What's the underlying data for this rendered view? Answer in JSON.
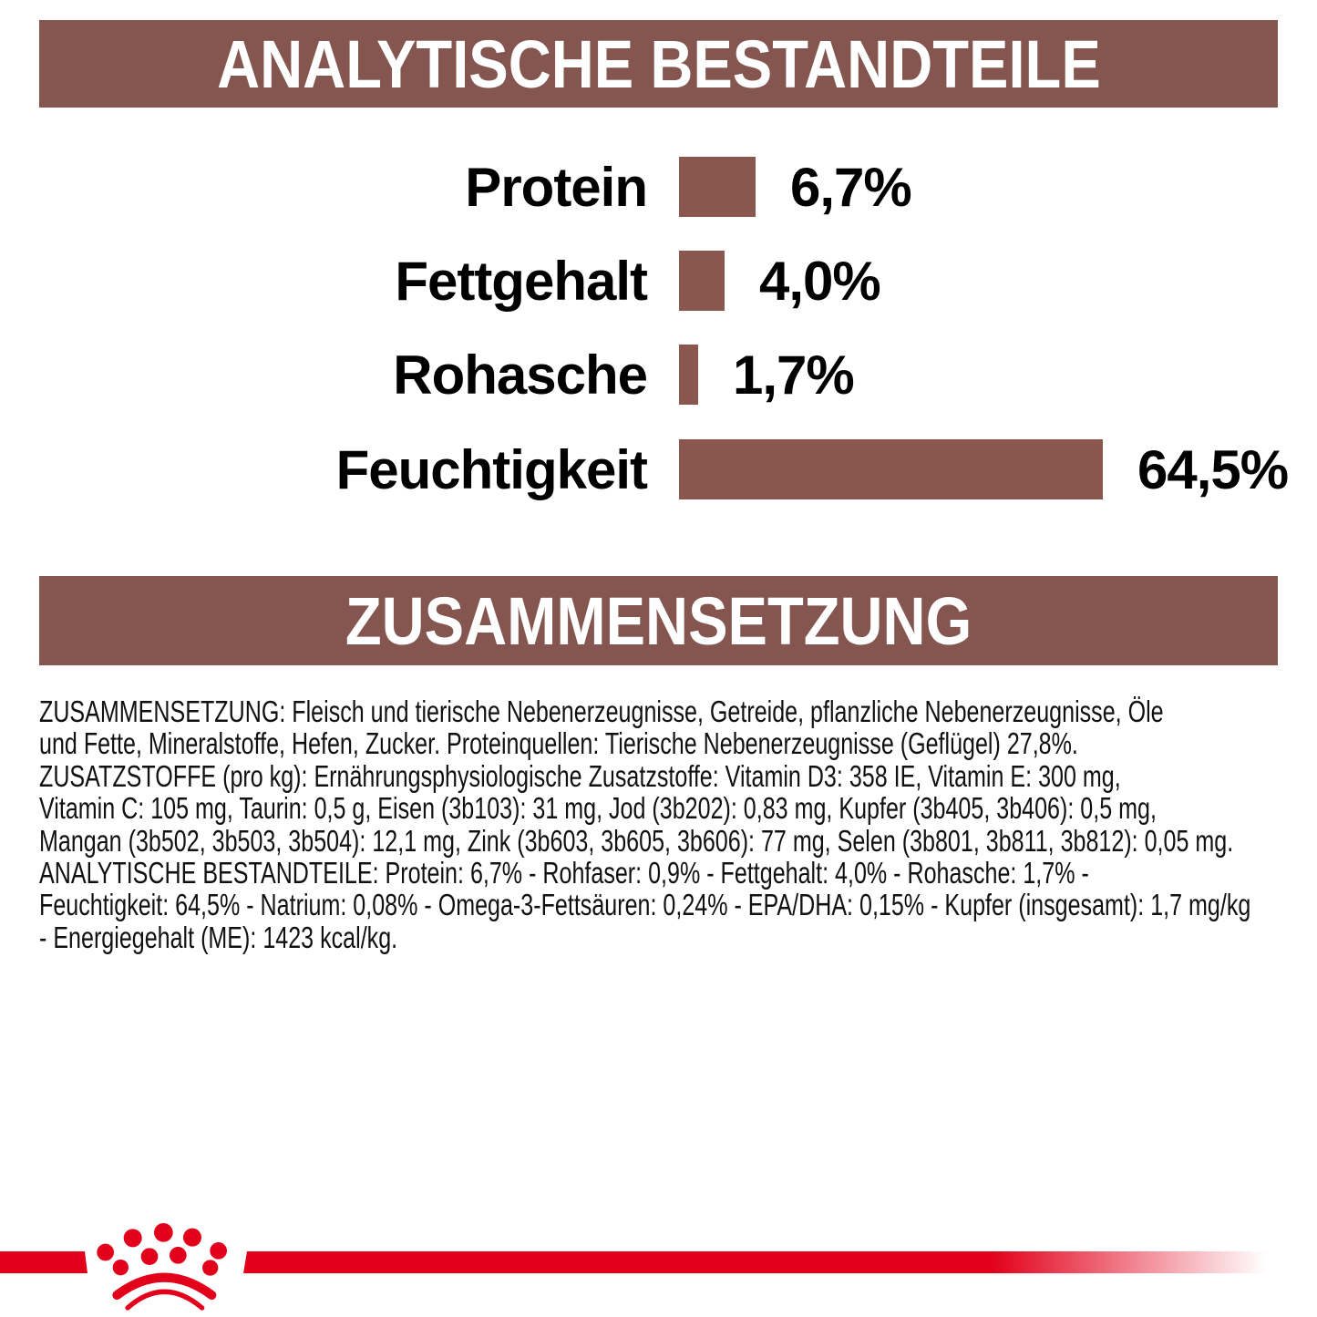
{
  "colors": {
    "page_bg": "#ffffff",
    "header_bg": "#84564f",
    "header_text": "#ffffff",
    "body_text": "#111111",
    "brand_red": "#e2001a"
  },
  "analytical_header": {
    "title": "ANALYTISCHE BESTANDTEILE"
  },
  "composition_header": {
    "title": "ZUSAMMENSETZUNG"
  },
  "chart_data": {
    "type": "bar",
    "orientation": "horizontal",
    "title": "ANALYTISCHE BESTANDTEILE",
    "categories": [
      "Protein",
      "Fettgehalt",
      "Rohasche",
      "Feuchtigkeit"
    ],
    "values": [
      6.7,
      4.0,
      1.7,
      64.5
    ],
    "value_labels": [
      "6,7%",
      "4,0%",
      "1,7%",
      "64,5%"
    ],
    "unit": "%",
    "bar_color": "#8a574e",
    "grid": false,
    "legend": false,
    "value_label_position": "right-of-bar"
  },
  "composition": {
    "lines": [
      "ZUSAMMENSETZUNG: Fleisch und tierische Nebenerzeugnisse, Getreide, pflanzliche Nebenerzeugnisse, Öle",
      "und Fette, Mineralstoffe, Hefen, Zucker. Proteinquellen: Tierische Nebenerzeugnisse (Geflügel) 27,8%.",
      "ZUSATZSTOFFE (pro kg): Ernährungsphysiologische Zusatzstoffe: Vitamin D3: 358 IE, Vitamin E: 300 mg,",
      "Vitamin C: 105 mg, Taurin: 0,5 g, Eisen (3b103): 31 mg, Jod (3b202): 0,83 mg, Kupfer (3b405, 3b406): 0,5 mg,",
      "Mangan (3b502, 3b503, 3b504): 12,1 mg, Zink (3b603, 3b605, 3b606): 77 mg, Selen (3b801, 3b811, 3b812): 0,05 mg.",
      "ANALYTISCHE BESTANDTEILE: Protein: 6,7% - Rohfaser: 0,9% - Fettgehalt: 4,0% - Rohasche: 1,7% -",
      "Feuchtigkeit: 64,5% - Natrium: 0,08% - Omega-3-Fettsäuren: 0,24% - EPA/DHA: 0,15% - Kupfer (insgesamt): 1,7 mg/kg",
      "- Energiegehalt (ME): 1423 kcal/kg."
    ]
  },
  "footer": {
    "logo_icon": "royal-canin-crown-icon"
  }
}
